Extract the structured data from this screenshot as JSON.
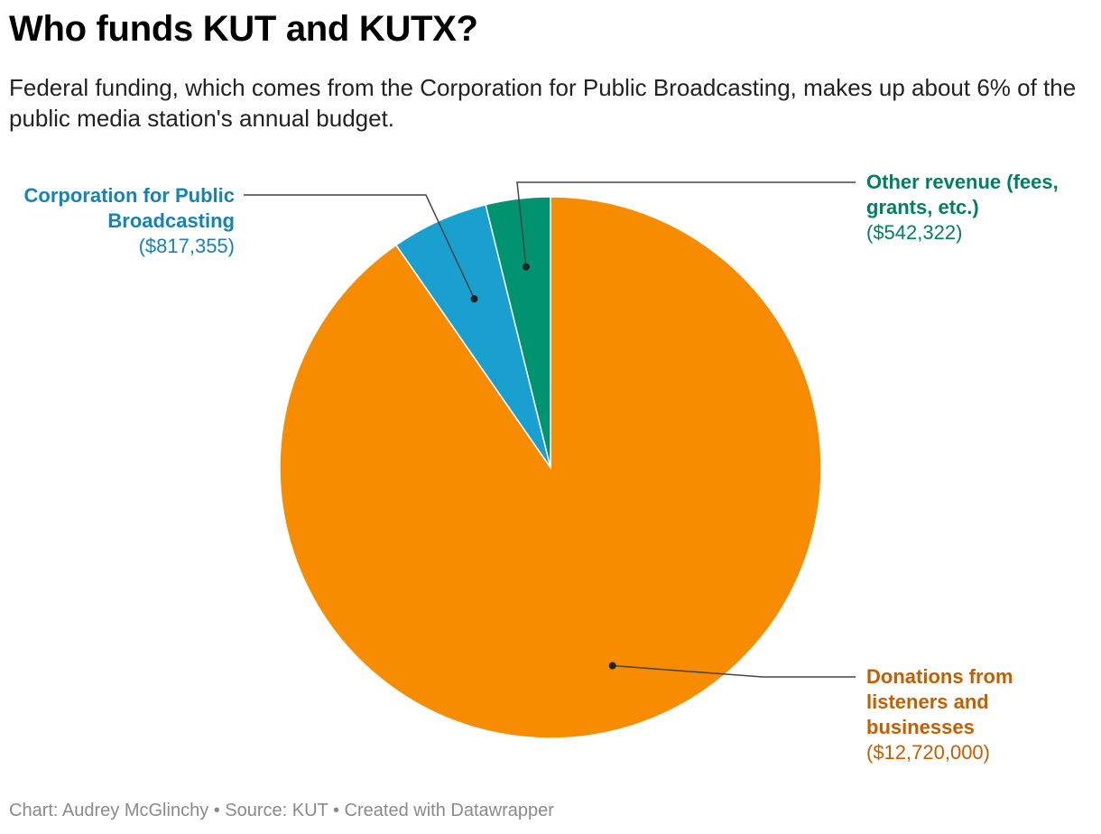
{
  "title": "Who funds KUT and KUTX?",
  "subtitle": "Federal funding, which comes from the Corporation for Public Broadcasting, makes up about 6% of the public media station's annual budget.",
  "footer": "Chart: Audrey McGlinchy • Source: KUT • Created with Datawrapper",
  "chart_data": {
    "type": "pie",
    "title": "Who funds KUT and KUTX?",
    "slices": [
      {
        "name": "Donations from listeners and businesses",
        "value": 12720000,
        "value_label": "($12,720,000)",
        "color": "#f78c00",
        "label_color": "#c45f00"
      },
      {
        "name": "Corporation for Public Broadcasting",
        "value": 817355,
        "value_label": "($817,355)",
        "color": "#1aa0cf",
        "label_color": "#1584b5"
      },
      {
        "name": "Other revenue (fees, grants, etc.)",
        "value": 542322,
        "value_label": "($542,322)",
        "color": "#00936f",
        "label_color": "#007f65"
      }
    ]
  }
}
